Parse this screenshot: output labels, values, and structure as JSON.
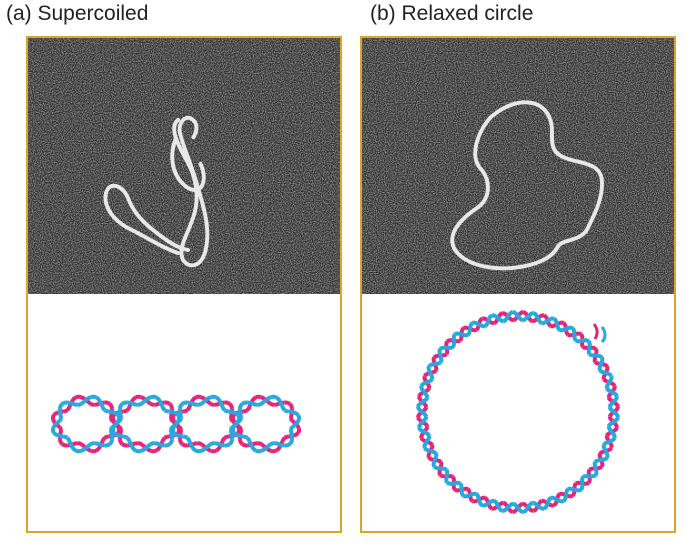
{
  "panel_a": {
    "title": "(a) Supercoiled",
    "strand_colors": {
      "strand1": "#e5257a",
      "strand2": "#27a9e0"
    }
  },
  "panel_b": {
    "title": "(b) Relaxed circle",
    "strand_colors": {
      "strand1": "#e5257a",
      "strand2": "#27a9e0"
    }
  },
  "colors": {
    "frame": "#d9a629",
    "micrograph_bg": "#2a2a2a"
  }
}
